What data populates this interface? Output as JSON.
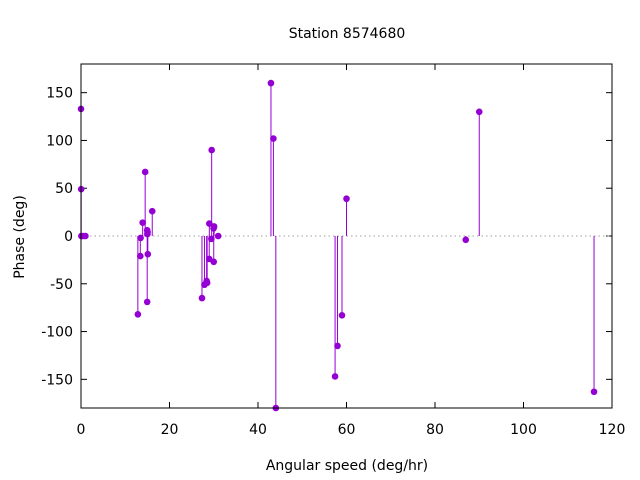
{
  "chart_data": {
    "type": "scatter",
    "style": "impulses-with-points",
    "title": "Station 8574680",
    "xlabel": "Angular speed (deg/hr)",
    "ylabel": "Phase (deg)",
    "xlim": [
      0,
      120
    ],
    "ylim": [
      -180,
      180
    ],
    "xticks": [
      0,
      20,
      40,
      60,
      80,
      100,
      120
    ],
    "yticks": [
      -150,
      -100,
      -50,
      0,
      50,
      100,
      150
    ],
    "xtick_labels": [
      "0",
      "20",
      "40",
      "60",
      "80",
      "100",
      "120"
    ],
    "ytick_labels": [
      "-150",
      "-100",
      "-50",
      "0",
      "50",
      "100",
      "150"
    ],
    "zero_line": "dotted",
    "grid": false,
    "series_color": "#9400d3",
    "points": [
      {
        "x": 0.0,
        "y": 133
      },
      {
        "x": 0.04,
        "y": 49
      },
      {
        "x": 0.08,
        "y": 0
      },
      {
        "x": 0.5,
        "y": 0
      },
      {
        "x": 1.0,
        "y": 0
      },
      {
        "x": 12.85,
        "y": -82
      },
      {
        "x": 13.4,
        "y": -21
      },
      {
        "x": 13.47,
        "y": -2
      },
      {
        "x": 13.94,
        "y": 14
      },
      {
        "x": 14.5,
        "y": 67
      },
      {
        "x": 14.96,
        "y": -69
      },
      {
        "x": 14.96,
        "y": 6
      },
      {
        "x": 15.0,
        "y": 2
      },
      {
        "x": 15.04,
        "y": 4
      },
      {
        "x": 15.1,
        "y": -19
      },
      {
        "x": 16.1,
        "y": 26
      },
      {
        "x": 27.34,
        "y": -65
      },
      {
        "x": 27.9,
        "y": -51
      },
      {
        "x": 28.4,
        "y": -47
      },
      {
        "x": 28.44,
        "y": -49
      },
      {
        "x": 28.51,
        "y": -49
      },
      {
        "x": 28.98,
        "y": -24
      },
      {
        "x": 29.0,
        "y": 13
      },
      {
        "x": 29.46,
        "y": -3
      },
      {
        "x": 29.53,
        "y": 90
      },
      {
        "x": 29.96,
        "y": 8
      },
      {
        "x": 30.0,
        "y": -27
      },
      {
        "x": 30.08,
        "y": 10
      },
      {
        "x": 31.0,
        "y": 0
      },
      {
        "x": 42.93,
        "y": 160
      },
      {
        "x": 43.48,
        "y": 102
      },
      {
        "x": 44.03,
        "y": -180
      },
      {
        "x": 57.42,
        "y": -147
      },
      {
        "x": 57.97,
        "y": -115
      },
      {
        "x": 58.98,
        "y": -83
      },
      {
        "x": 60.0,
        "y": 39
      },
      {
        "x": 86.95,
        "y": -4
      },
      {
        "x": 90.0,
        "y": 130
      },
      {
        "x": 115.94,
        "y": -163
      }
    ]
  }
}
